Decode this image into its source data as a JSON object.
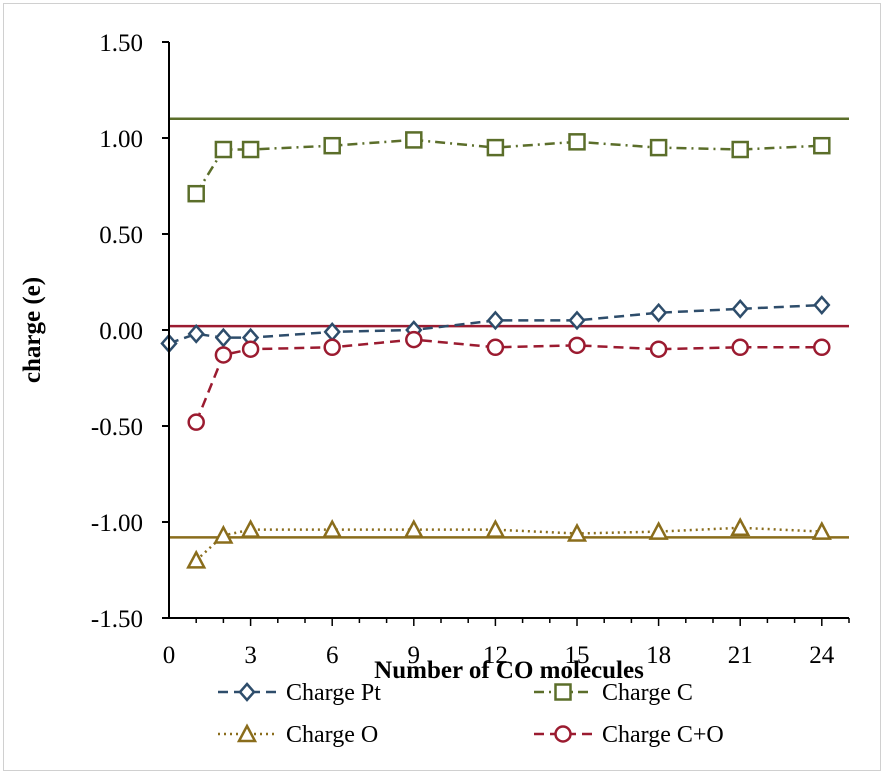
{
  "chart_data": {
    "type": "line",
    "title": "",
    "xlabel": "Number of CO molecules",
    "ylabel": "charge (e)",
    "xlim": [
      0,
      25
    ],
    "ylim": [
      -1.5,
      1.5
    ],
    "xticks": [
      0,
      3,
      6,
      9,
      12,
      15,
      18,
      21,
      24
    ],
    "yticks": [
      1.5,
      1.0,
      0.5,
      0.0,
      -0.5,
      -1.0,
      -1.5
    ],
    "ytick_labels": [
      "1.50",
      "1.00",
      "0.50",
      "0.00",
      "-0.50",
      "-1.00",
      "-1.50"
    ],
    "grid": false,
    "legend_position": "bottom",
    "series": [
      {
        "name": "Charge Pt",
        "color": "#2e4d6b",
        "marker": "diamond",
        "line": "dashed",
        "x": [
          0,
          1,
          2,
          3,
          6,
          9,
          12,
          15,
          18,
          21,
          24
        ],
        "y": [
          -0.07,
          -0.02,
          -0.04,
          -0.04,
          -0.01,
          0.0,
          0.05,
          0.05,
          0.09,
          0.11,
          0.13
        ]
      },
      {
        "name": "Charge C",
        "color": "#5b6e2a",
        "marker": "square",
        "line": "dashdot",
        "x": [
          1,
          2,
          3,
          6,
          9,
          12,
          15,
          18,
          21,
          24
        ],
        "y": [
          0.71,
          0.94,
          0.94,
          0.96,
          0.99,
          0.95,
          0.98,
          0.95,
          0.94,
          0.96
        ]
      },
      {
        "name": "Charge O",
        "color": "#8a6d1c",
        "marker": "triangle",
        "line": "dotted",
        "x": [
          1,
          2,
          3,
          6,
          9,
          12,
          15,
          18,
          21,
          24
        ],
        "y": [
          -1.2,
          -1.07,
          -1.04,
          -1.04,
          -1.04,
          -1.04,
          -1.06,
          -1.05,
          -1.03,
          -1.05
        ]
      },
      {
        "name": "Charge C+O",
        "color": "#9b1b30",
        "marker": "circle",
        "line": "dashed",
        "x": [
          1,
          2,
          3,
          6,
          9,
          12,
          15,
          18,
          21,
          24
        ],
        "y": [
          -0.48,
          -0.13,
          -0.1,
          -0.09,
          -0.05,
          -0.09,
          -0.08,
          -0.1,
          -0.09,
          -0.09
        ]
      }
    ],
    "reference_lines": [
      {
        "y": 1.1,
        "color": "#5b6e2a"
      },
      {
        "y": 0.02,
        "color": "#9b1b30"
      },
      {
        "y": -1.08,
        "color": "#8a6d1c"
      }
    ]
  }
}
